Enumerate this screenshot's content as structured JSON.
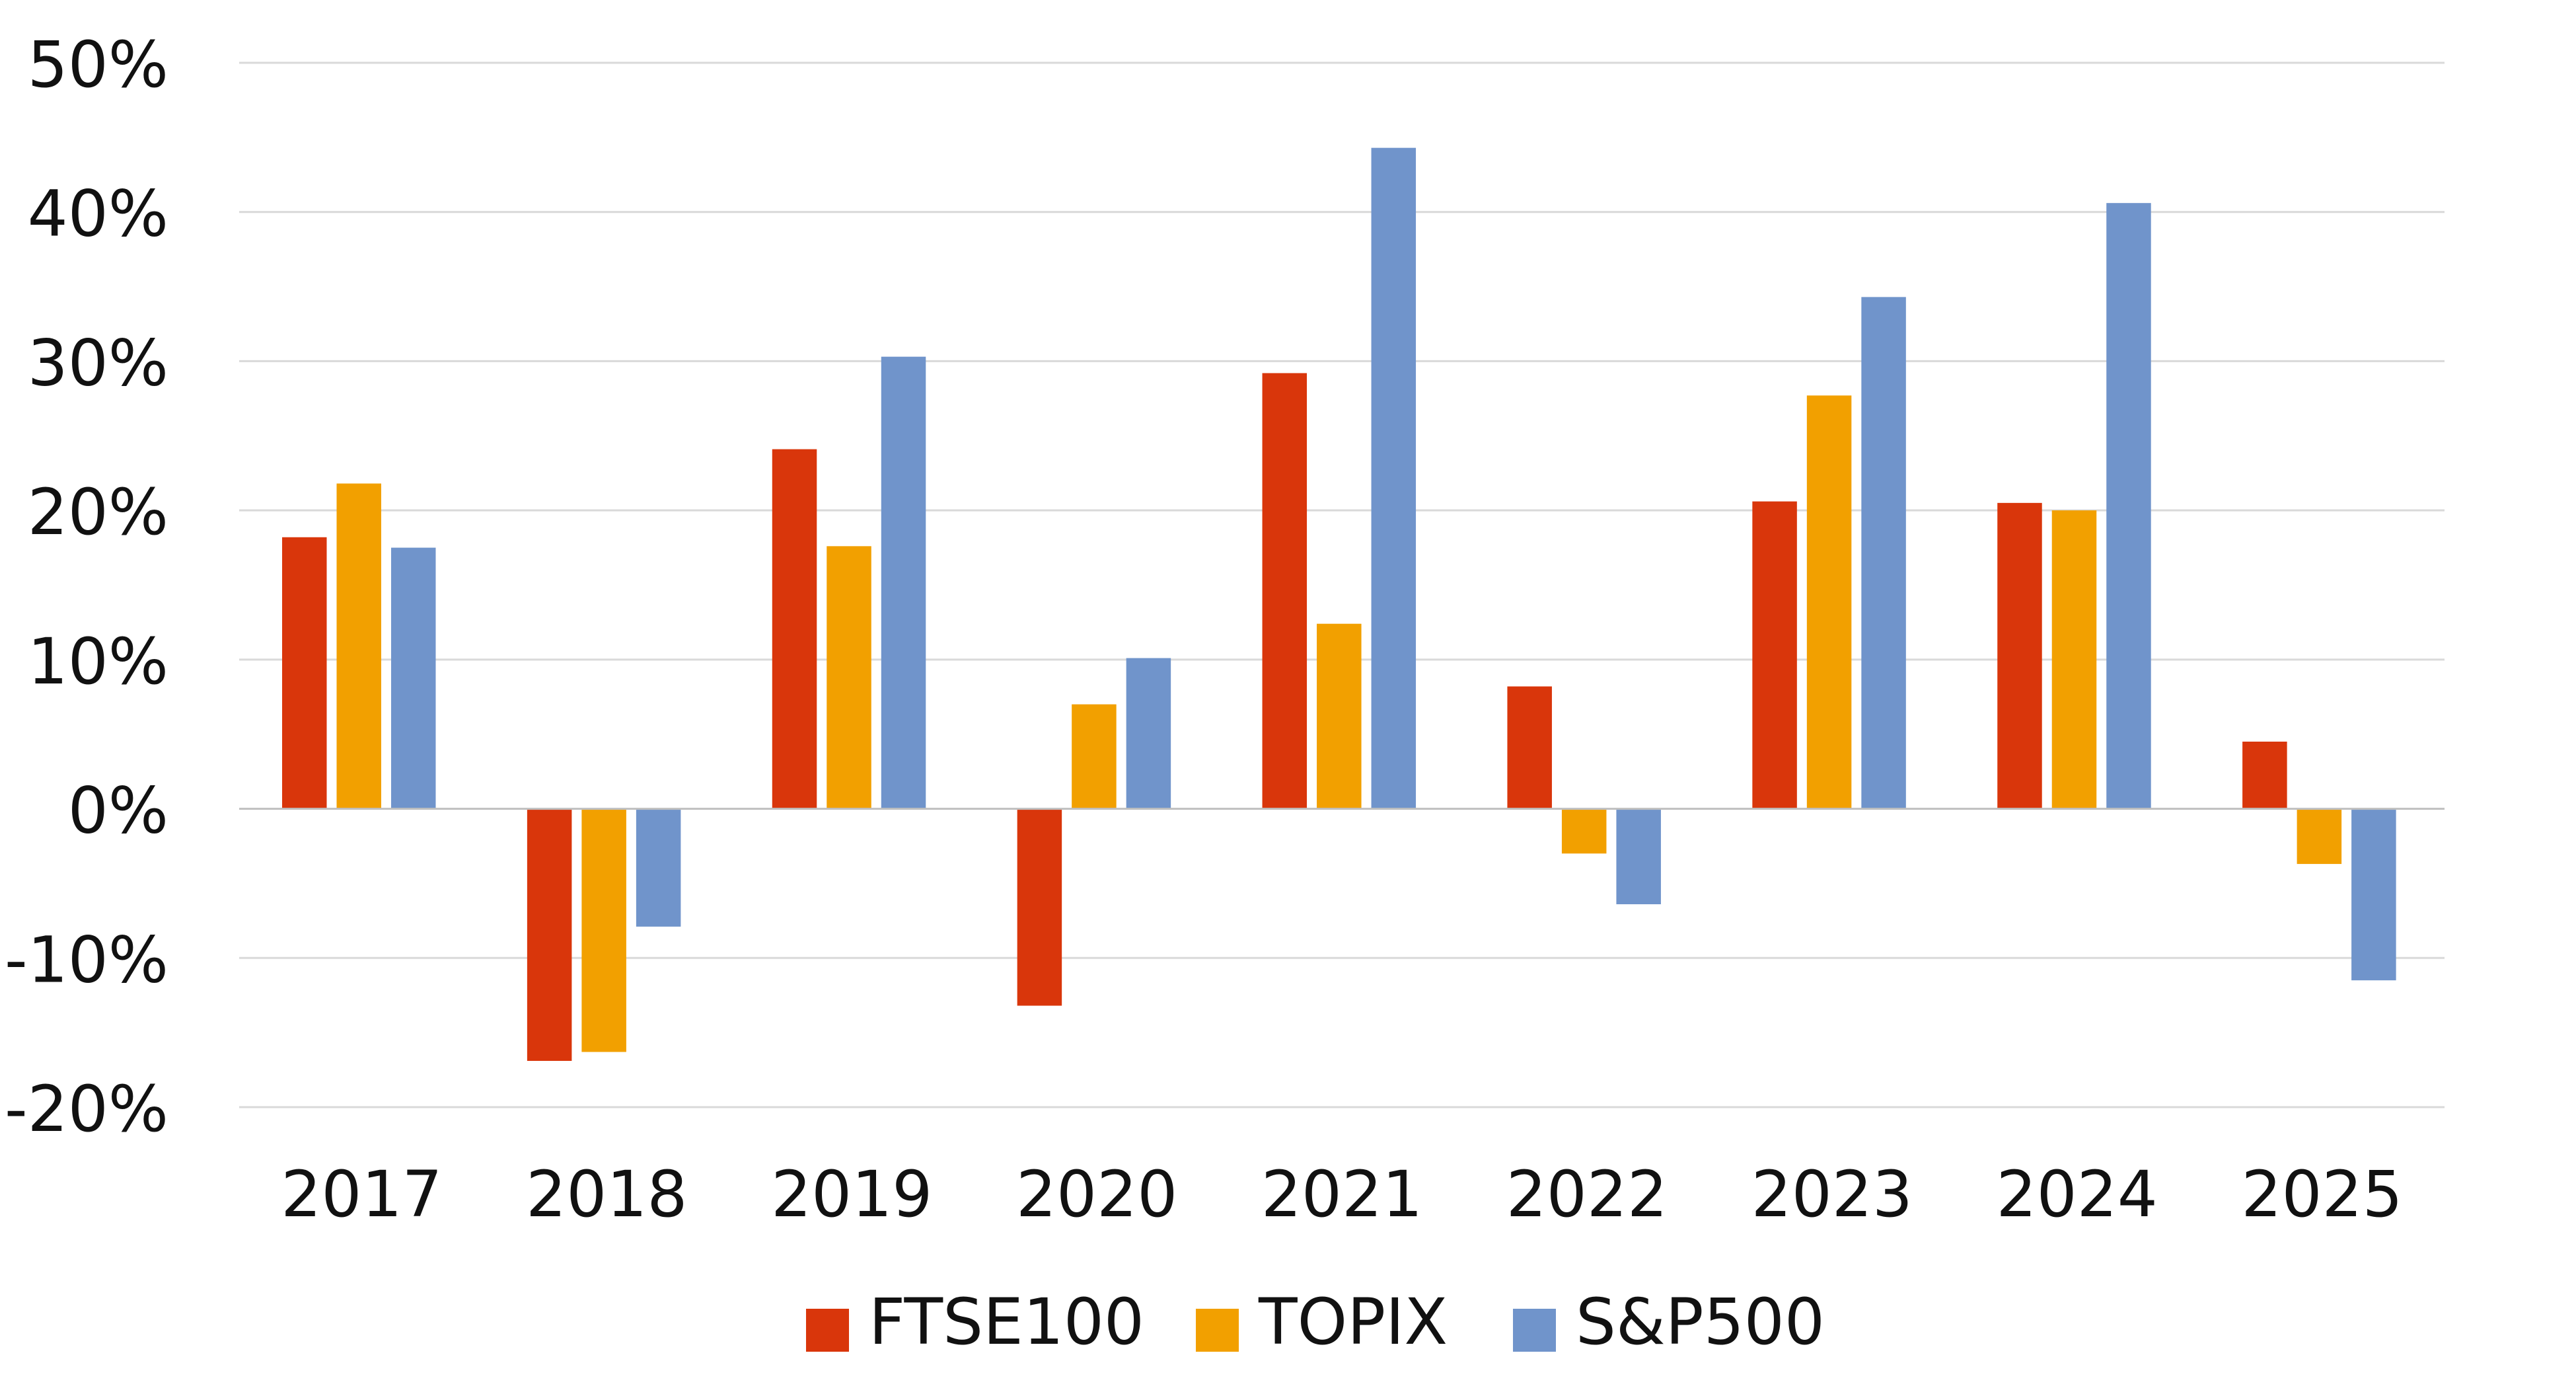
{
  "chart_data": {
    "type": "bar",
    "title": "",
    "xlabel": "",
    "ylabel": "",
    "ylim": [
      -20,
      50
    ],
    "yticks": [
      -20,
      -10,
      0,
      10,
      20,
      30,
      40,
      50
    ],
    "ytick_labels": [
      "-20%",
      "-10%",
      "0%",
      "10%",
      "20%",
      "30%",
      "40%",
      "50%"
    ],
    "grid": true,
    "legend_position": "bottom",
    "categories": [
      "2017",
      "2018",
      "2019",
      "2020",
      "2021",
      "2022",
      "2023",
      "2024",
      "2025"
    ],
    "series": [
      {
        "name": "FTSE100",
        "color": "#D9360B",
        "values": [
          18.2,
          -16.9,
          24.1,
          -13.2,
          29.2,
          8.2,
          20.6,
          20.5,
          4.5
        ]
      },
      {
        "name": "TOPIX",
        "color": "#F2A000",
        "values": [
          21.8,
          -16.3,
          17.6,
          7.0,
          12.4,
          -3.0,
          27.7,
          20.0,
          -3.7
        ]
      },
      {
        "name": "S&P500",
        "color": "#7094CB",
        "values": [
          17.5,
          -7.9,
          30.3,
          10.1,
          44.3,
          -6.4,
          34.3,
          40.6,
          -11.5
        ]
      }
    ]
  }
}
